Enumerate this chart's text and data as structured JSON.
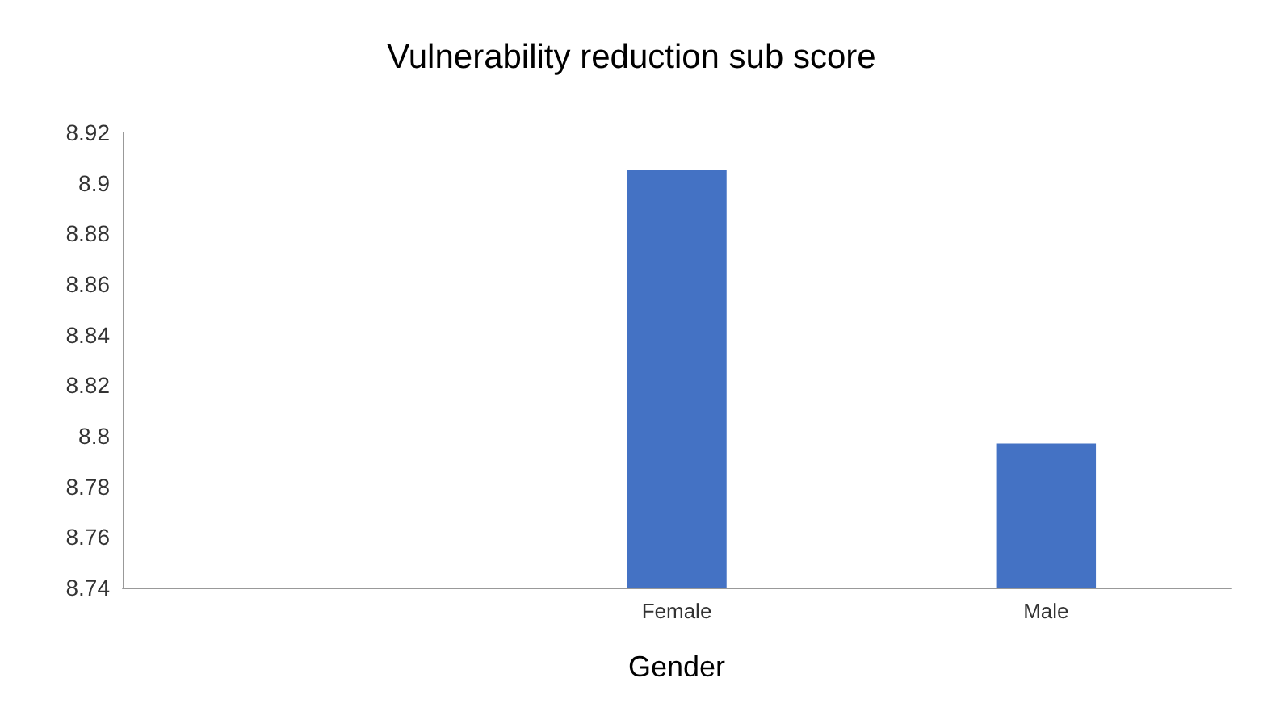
{
  "chart_data": {
    "type": "bar",
    "title": "Vulnerability reduction sub score",
    "xlabel": "Gender",
    "categories": [
      null,
      "Female",
      "Male"
    ],
    "values": [
      null,
      8.905,
      8.797
    ],
    "color": "#4472c4",
    "ylim": [
      8.74,
      8.92
    ],
    "yticks": [
      8.74,
      8.76,
      8.78,
      8.8,
      8.82,
      8.84,
      8.86,
      8.88,
      8.9,
      8.92
    ],
    "grid": false
  }
}
